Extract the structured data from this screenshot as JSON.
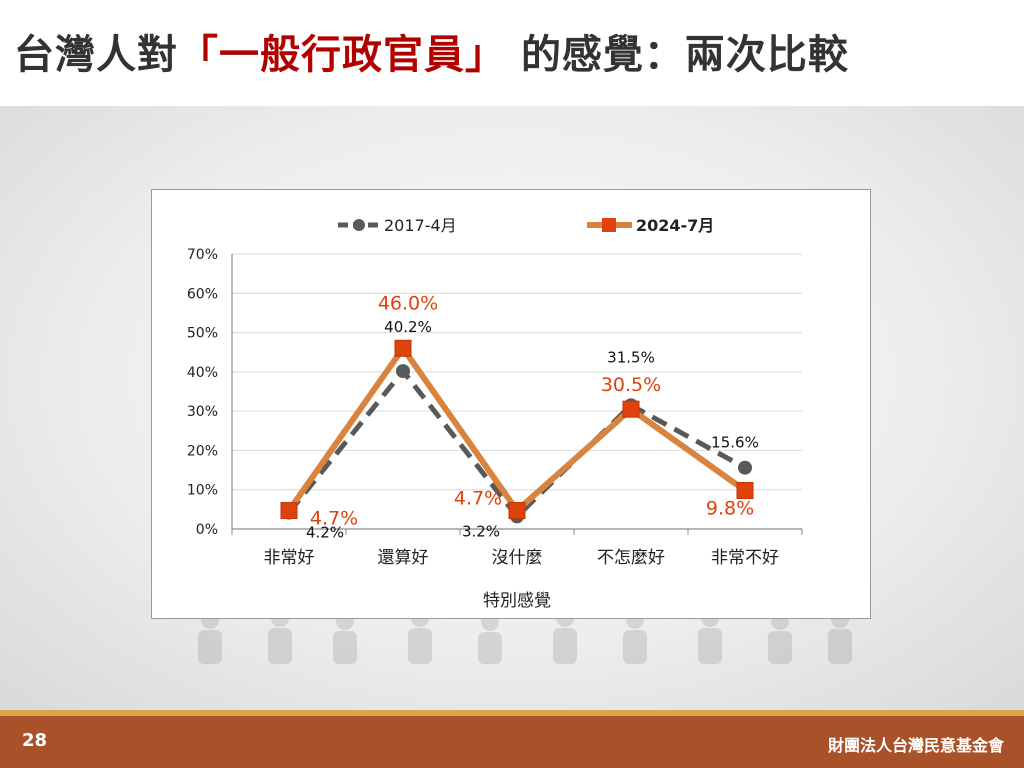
{
  "slide": {
    "title_prefix": "台灣人對",
    "title_highlight": "「一般行政官員」",
    "title_suffix": "的感覺：兩次比較",
    "page_number": "28",
    "organization": "財團法人台灣民意基金會"
  },
  "colors": {
    "series_2017": "#595959",
    "series_2024_line": "#d9843e",
    "series_2024_marker": "#e0420c",
    "label_2024": "#e0420c",
    "title_highlight": "#b00000",
    "footer": "#a9522a"
  },
  "chart_data": {
    "type": "line",
    "xlabel": "特別感覺",
    "ylabel": "",
    "categories": [
      "非常好",
      "還算好",
      "沒什麼",
      "不怎麼好",
      "非常不好"
    ],
    "ylim": [
      0,
      70
    ],
    "y_ticks": [
      "0%",
      "10%",
      "20%",
      "30%",
      "40%",
      "50%",
      "60%",
      "70%"
    ],
    "grid": true,
    "legend_position": "top",
    "series": [
      {
        "name": "2017-4月",
        "values": [
          4.2,
          40.2,
          3.2,
          31.5,
          15.6
        ],
        "labels": [
          "4.2%",
          "40.2%",
          "3.2%",
          "31.5%",
          "15.6%"
        ],
        "style": "dashed",
        "marker": "circle"
      },
      {
        "name": "2024-7月",
        "values": [
          4.7,
          46.0,
          4.7,
          30.5,
          9.8
        ],
        "labels": [
          "4.7%",
          "46.0%",
          "4.7%",
          "30.5%",
          "9.8%"
        ],
        "style": "solid",
        "marker": "square"
      }
    ]
  }
}
